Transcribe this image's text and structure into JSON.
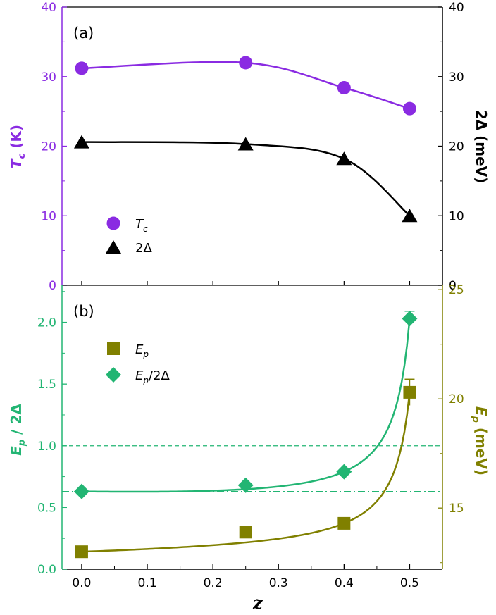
{
  "chart_data": [
    {
      "type": "line",
      "panel_label": "(a)",
      "x": [
        0.0,
        0.25,
        0.4,
        0.5
      ],
      "xlim": [
        -0.03,
        0.55
      ],
      "left_axis": {
        "label_main": "T",
        "label_sub": "c",
        "label_unit": " (K)",
        "ylim": [
          0,
          40
        ],
        "ticks": [
          "0",
          "10",
          "20",
          "30",
          "40"
        ],
        "color": "#8a2be2"
      },
      "right_axis": {
        "label": "2Δ (meV)",
        "ylim": [
          0,
          40
        ],
        "ticks": [
          "0",
          "10",
          "20",
          "30",
          "40"
        ],
        "color": "#000000"
      },
      "series": [
        {
          "name_main": "T",
          "name_sub": "c",
          "axis": "left",
          "marker": "circle",
          "color": "#8a2be2",
          "values": [
            31.2,
            32.0,
            28.4,
            25.4
          ]
        },
        {
          "name_main": "2Δ",
          "name_sub": "",
          "axis": "right",
          "marker": "triangle",
          "color": "#000000",
          "values": [
            20.6,
            20.3,
            18.2,
            10.0
          ]
        }
      ],
      "legend_position": "lower-left"
    },
    {
      "type": "line",
      "panel_label": "(b)",
      "x": [
        0.0,
        0.25,
        0.4,
        0.5
      ],
      "xlim": [
        -0.03,
        0.55
      ],
      "x_ticks": [
        "0.0",
        "0.1",
        "0.2",
        "0.3",
        "0.4",
        "0.5"
      ],
      "xlabel": "z",
      "left_axis": {
        "label": "E",
        "label_sub": "p",
        "label_rest": " / 2Δ",
        "ylim": [
          0,
          2.3
        ],
        "ticks": [
          "0.0",
          "0.5",
          "1.0",
          "1.5",
          "2.0"
        ],
        "color": "#22b573"
      },
      "right_axis": {
        "label_main": "E",
        "label_sub": "p",
        "label_unit": " (meV)",
        "ylim": [
          12.2,
          25.2
        ],
        "ticks": [
          "15",
          "20",
          "25"
        ],
        "color": "#808000"
      },
      "series": [
        {
          "name_main": "E",
          "name_sub": "p",
          "name_rest": "",
          "axis": "right",
          "marker": "square",
          "color": "#808000",
          "values": [
            13.0,
            13.9,
            14.3,
            20.3
          ],
          "error_last": 0.6
        },
        {
          "name_main": "E",
          "name_sub": "p",
          "name_rest": "/2Δ",
          "axis": "left",
          "marker": "diamond",
          "color": "#22b573",
          "values": [
            0.63,
            0.68,
            0.79,
            2.03
          ],
          "error_last": 0.06
        }
      ],
      "reference_lines": [
        {
          "y": 1.0,
          "style": "dashed"
        },
        {
          "y": 0.63,
          "style": "dash-dot"
        }
      ],
      "legend_position": "upper-left"
    }
  ]
}
